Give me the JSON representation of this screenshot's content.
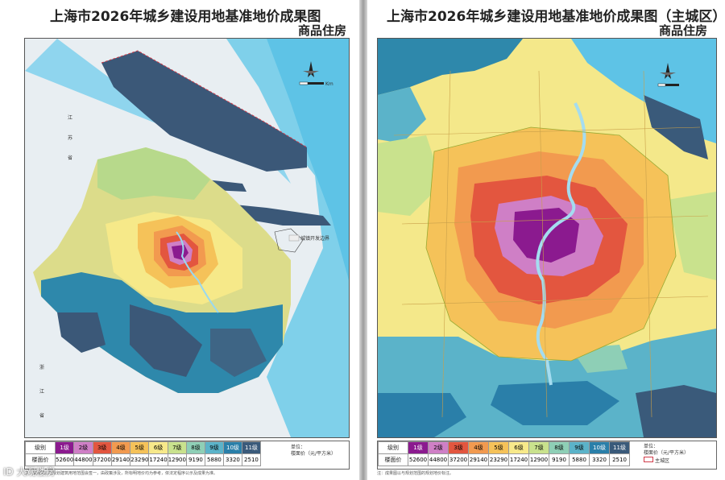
{
  "left_page": {
    "title": "上海市2026年城乡建设用地基准地价成果图",
    "subtitle": "商品住房",
    "labels": {
      "jiangsu": [
        "江",
        "苏",
        "省"
      ],
      "zhejiang": [
        "浙",
        "江",
        "省"
      ]
    },
    "scale_unit": "Km",
    "note": "注：成果图以与规划建筑用地范围会签一，由政策涉及，所标明地价均为参考，依法定程序公示及成果为准。"
  },
  "right_page": {
    "title": "上海市2026年城乡建设用地基准地价成果图（主城区）",
    "subtitle": "商品住房",
    "note": "注：成果图以与规划范围的规划地价标注。"
  },
  "legend": {
    "row1_label": "级别",
    "row2_label": "楼面价",
    "levels": [
      "1级",
      "2级",
      "3级",
      "4级",
      "5级",
      "6级",
      "7级",
      "8级",
      "9级",
      "10级",
      "11级"
    ],
    "prices": [
      "52600",
      "44800",
      "37200",
      "29140",
      "23290",
      "17240",
      "12900",
      "9190",
      "5880",
      "3320",
      "2510"
    ],
    "colors": [
      "#8b1a8f",
      "#cf7fc6",
      "#e3563f",
      "#f29a4f",
      "#f5c259",
      "#f7e98a",
      "#c9e28d",
      "#8ecfb6",
      "#5bb3c9",
      "#2a7fa9",
      "#3a5a7a"
    ],
    "unit_left": [
      "单位：",
      "楼面价（元/平方米）"
    ],
    "unit_right": [
      "单位：",
      "楼面价（元/平方米）"
    ],
    "boundary_label_left": "城镇开发边界",
    "boundary_label_right": "主城区"
  },
  "watermark": "ID 大观楼房"
}
